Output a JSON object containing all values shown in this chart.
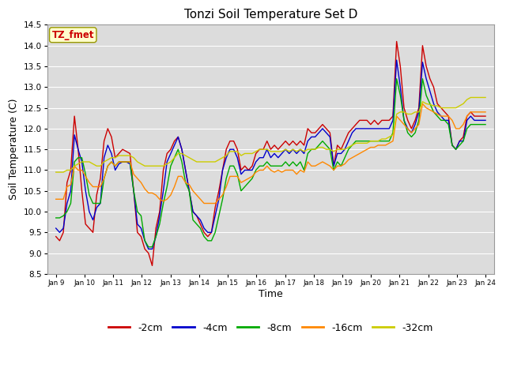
{
  "title": "Tonzi Soil Temperature Set D",
  "xlabel": "Time",
  "ylabel": "Soil Temperature (C)",
  "ylim": [
    8.5,
    14.5
  ],
  "x_tick_labels": [
    "Jan 9",
    "Jan 10",
    "Jan 11",
    "Jan 12",
    "Jan 13",
    "Jan 14",
    "Jan 15",
    "Jan 16",
    "Jan 17",
    "Jan 18",
    "Jan 19",
    "Jan 20",
    "Jan 21",
    "Jan 22",
    "Jan 23",
    "Jan 24"
  ],
  "legend_labels": [
    "-2cm",
    "-4cm",
    "-8cm",
    "-16cm",
    "-32cm"
  ],
  "legend_colors": [
    "#cc0000",
    "#0000cc",
    "#00aa00",
    "#ff8800",
    "#cccc00"
  ],
  "background_color": "#dcdcdc",
  "annotation_text": "TZ_fmet",
  "annotation_bg": "#ffffcc",
  "annotation_border": "#999900",
  "annotation_text_color": "#cc0000",
  "series": {
    "neg2cm": [
      9.4,
      9.3,
      9.5,
      10.7,
      11.0,
      12.3,
      11.5,
      10.5,
      9.7,
      9.6,
      9.5,
      10.4,
      10.8,
      11.7,
      12.0,
      11.8,
      11.3,
      11.4,
      11.5,
      11.45,
      11.4,
      10.5,
      9.5,
      9.4,
      9.1,
      9.0,
      8.7,
      9.6,
      10.0,
      11.0,
      11.4,
      11.5,
      11.7,
      11.8,
      11.5,
      11.0,
      10.5,
      10.0,
      9.9,
      9.7,
      9.5,
      9.4,
      9.5,
      10.1,
      10.5,
      11.0,
      11.5,
      11.7,
      11.7,
      11.5,
      11.0,
      11.1,
      11.0,
      11.1,
      11.4,
      11.5,
      11.5,
      11.7,
      11.5,
      11.6,
      11.5,
      11.6,
      11.7,
      11.6,
      11.7,
      11.6,
      11.7,
      11.6,
      12.0,
      11.9,
      11.9,
      12.0,
      12.1,
      12.0,
      11.9,
      11.1,
      11.6,
      11.5,
      11.7,
      11.9,
      12.0,
      12.1,
      12.2,
      12.2,
      12.2,
      12.1,
      12.2,
      12.1,
      12.2,
      12.2,
      12.2,
      12.3,
      14.1,
      13.5,
      12.5,
      12.2,
      12.0,
      12.2,
      12.5,
      14.0,
      13.5,
      13.2,
      13.0,
      12.6,
      12.5,
      12.4,
      12.3,
      11.6,
      11.5,
      11.7,
      11.8,
      12.3,
      12.4,
      12.3,
      12.3,
      12.3,
      12.3
    ],
    "neg4cm": [
      9.6,
      9.5,
      9.6,
      10.2,
      10.5,
      11.85,
      11.5,
      11.2,
      10.5,
      10.0,
      9.8,
      10.1,
      10.2,
      11.3,
      11.6,
      11.4,
      11.0,
      11.15,
      11.2,
      11.2,
      11.15,
      10.5,
      9.7,
      9.6,
      9.3,
      9.1,
      9.1,
      9.4,
      9.9,
      10.5,
      11.2,
      11.4,
      11.6,
      11.8,
      11.5,
      11.0,
      10.5,
      10.0,
      9.9,
      9.8,
      9.6,
      9.5,
      9.5,
      9.9,
      10.3,
      11.0,
      11.3,
      11.5,
      11.5,
      11.3,
      10.9,
      11.0,
      11.0,
      11.0,
      11.2,
      11.3,
      11.3,
      11.5,
      11.3,
      11.4,
      11.3,
      11.4,
      11.5,
      11.4,
      11.5,
      11.4,
      11.5,
      11.4,
      11.7,
      11.8,
      11.8,
      11.9,
      12.0,
      11.9,
      11.8,
      11.1,
      11.4,
      11.4,
      11.5,
      11.7,
      11.9,
      12.0,
      12.0,
      12.0,
      12.0,
      12.0,
      12.0,
      12.0,
      12.0,
      12.0,
      12.0,
      12.2,
      13.65,
      13.0,
      12.2,
      12.0,
      11.9,
      12.1,
      12.4,
      13.6,
      13.2,
      12.9,
      12.6,
      12.4,
      12.3,
      12.2,
      12.2,
      11.6,
      11.5,
      11.7,
      11.7,
      12.2,
      12.3,
      12.2,
      12.2,
      12.2,
      12.2
    ],
    "neg8cm": [
      9.85,
      9.85,
      9.9,
      10.0,
      10.2,
      11.2,
      11.3,
      11.3,
      10.9,
      10.4,
      10.2,
      10.2,
      10.2,
      10.8,
      11.1,
      11.2,
      11.1,
      11.2,
      11.2,
      11.2,
      11.2,
      10.5,
      10.0,
      9.9,
      9.3,
      9.15,
      9.15,
      9.4,
      9.7,
      10.2,
      10.6,
      11.1,
      11.3,
      11.5,
      11.2,
      10.7,
      10.5,
      9.8,
      9.7,
      9.6,
      9.4,
      9.3,
      9.3,
      9.5,
      9.9,
      10.3,
      10.8,
      11.1,
      11.1,
      10.9,
      10.5,
      10.6,
      10.7,
      10.8,
      11.0,
      11.1,
      11.1,
      11.2,
      11.1,
      11.1,
      11.1,
      11.1,
      11.2,
      11.1,
      11.2,
      11.1,
      11.2,
      11.0,
      11.4,
      11.5,
      11.5,
      11.6,
      11.7,
      11.6,
      11.5,
      11.0,
      11.2,
      11.1,
      11.3,
      11.5,
      11.6,
      11.7,
      11.7,
      11.7,
      11.7,
      11.7,
      11.7,
      11.7,
      11.7,
      11.7,
      11.7,
      11.9,
      13.2,
      12.8,
      12.2,
      11.9,
      11.8,
      11.9,
      12.2,
      13.2,
      12.8,
      12.6,
      12.4,
      12.3,
      12.2,
      12.2,
      12.1,
      11.6,
      11.5,
      11.6,
      11.7,
      12.0,
      12.1,
      12.1,
      12.1,
      12.1,
      12.1
    ],
    "neg16cm": [
      10.3,
      10.3,
      10.3,
      10.6,
      10.65,
      11.1,
      11.0,
      11.0,
      10.85,
      10.7,
      10.6,
      10.6,
      10.6,
      10.8,
      11.1,
      11.2,
      11.1,
      11.2,
      11.2,
      11.2,
      11.2,
      10.9,
      10.8,
      10.7,
      10.55,
      10.45,
      10.45,
      10.4,
      10.3,
      10.25,
      10.3,
      10.4,
      10.6,
      10.85,
      10.85,
      10.7,
      10.65,
      10.5,
      10.4,
      10.3,
      10.2,
      10.2,
      10.2,
      10.2,
      10.3,
      10.4,
      10.6,
      10.85,
      10.85,
      10.85,
      10.7,
      10.75,
      10.8,
      10.85,
      10.95,
      11.0,
      11.0,
      11.1,
      11.0,
      10.95,
      11.0,
      10.95,
      11.0,
      11.0,
      11.0,
      10.9,
      11.0,
      10.95,
      11.2,
      11.1,
      11.1,
      11.15,
      11.2,
      11.15,
      11.1,
      11.0,
      11.1,
      11.1,
      11.15,
      11.25,
      11.3,
      11.35,
      11.4,
      11.45,
      11.5,
      11.55,
      11.55,
      11.6,
      11.6,
      11.6,
      11.65,
      11.7,
      12.3,
      12.2,
      12.1,
      12.0,
      11.9,
      12.0,
      12.1,
      12.6,
      12.5,
      12.45,
      12.4,
      12.35,
      12.3,
      12.3,
      12.3,
      12.2,
      12.0,
      12.0,
      12.1,
      12.3,
      12.4,
      12.4,
      12.4,
      12.4,
      12.4
    ],
    "neg32cm": [
      10.95,
      10.95,
      10.95,
      11.0,
      11.0,
      11.1,
      11.15,
      11.2,
      11.2,
      11.2,
      11.15,
      11.1,
      11.1,
      11.2,
      11.25,
      11.3,
      11.3,
      11.35,
      11.35,
      11.35,
      11.35,
      11.3,
      11.2,
      11.15,
      11.1,
      11.1,
      11.1,
      11.1,
      11.1,
      11.1,
      11.15,
      11.2,
      11.3,
      11.4,
      11.4,
      11.35,
      11.3,
      11.25,
      11.2,
      11.2,
      11.2,
      11.2,
      11.2,
      11.2,
      11.25,
      11.3,
      11.35,
      11.45,
      11.45,
      11.45,
      11.35,
      11.4,
      11.4,
      11.4,
      11.45,
      11.5,
      11.5,
      11.5,
      11.45,
      11.45,
      11.45,
      11.45,
      11.5,
      11.45,
      11.5,
      11.45,
      11.5,
      11.45,
      11.5,
      11.5,
      11.5,
      11.55,
      11.55,
      11.5,
      11.5,
      11.45,
      11.5,
      11.5,
      11.5,
      11.55,
      11.6,
      11.65,
      11.65,
      11.65,
      11.65,
      11.7,
      11.7,
      11.7,
      11.75,
      11.75,
      11.8,
      11.85,
      12.35,
      12.4,
      12.4,
      12.35,
      12.35,
      12.4,
      12.4,
      12.65,
      12.6,
      12.58,
      12.55,
      12.55,
      12.5,
      12.5,
      12.5,
      12.5,
      12.5,
      12.55,
      12.6,
      12.7,
      12.75,
      12.75,
      12.75,
      12.75,
      12.75
    ]
  }
}
